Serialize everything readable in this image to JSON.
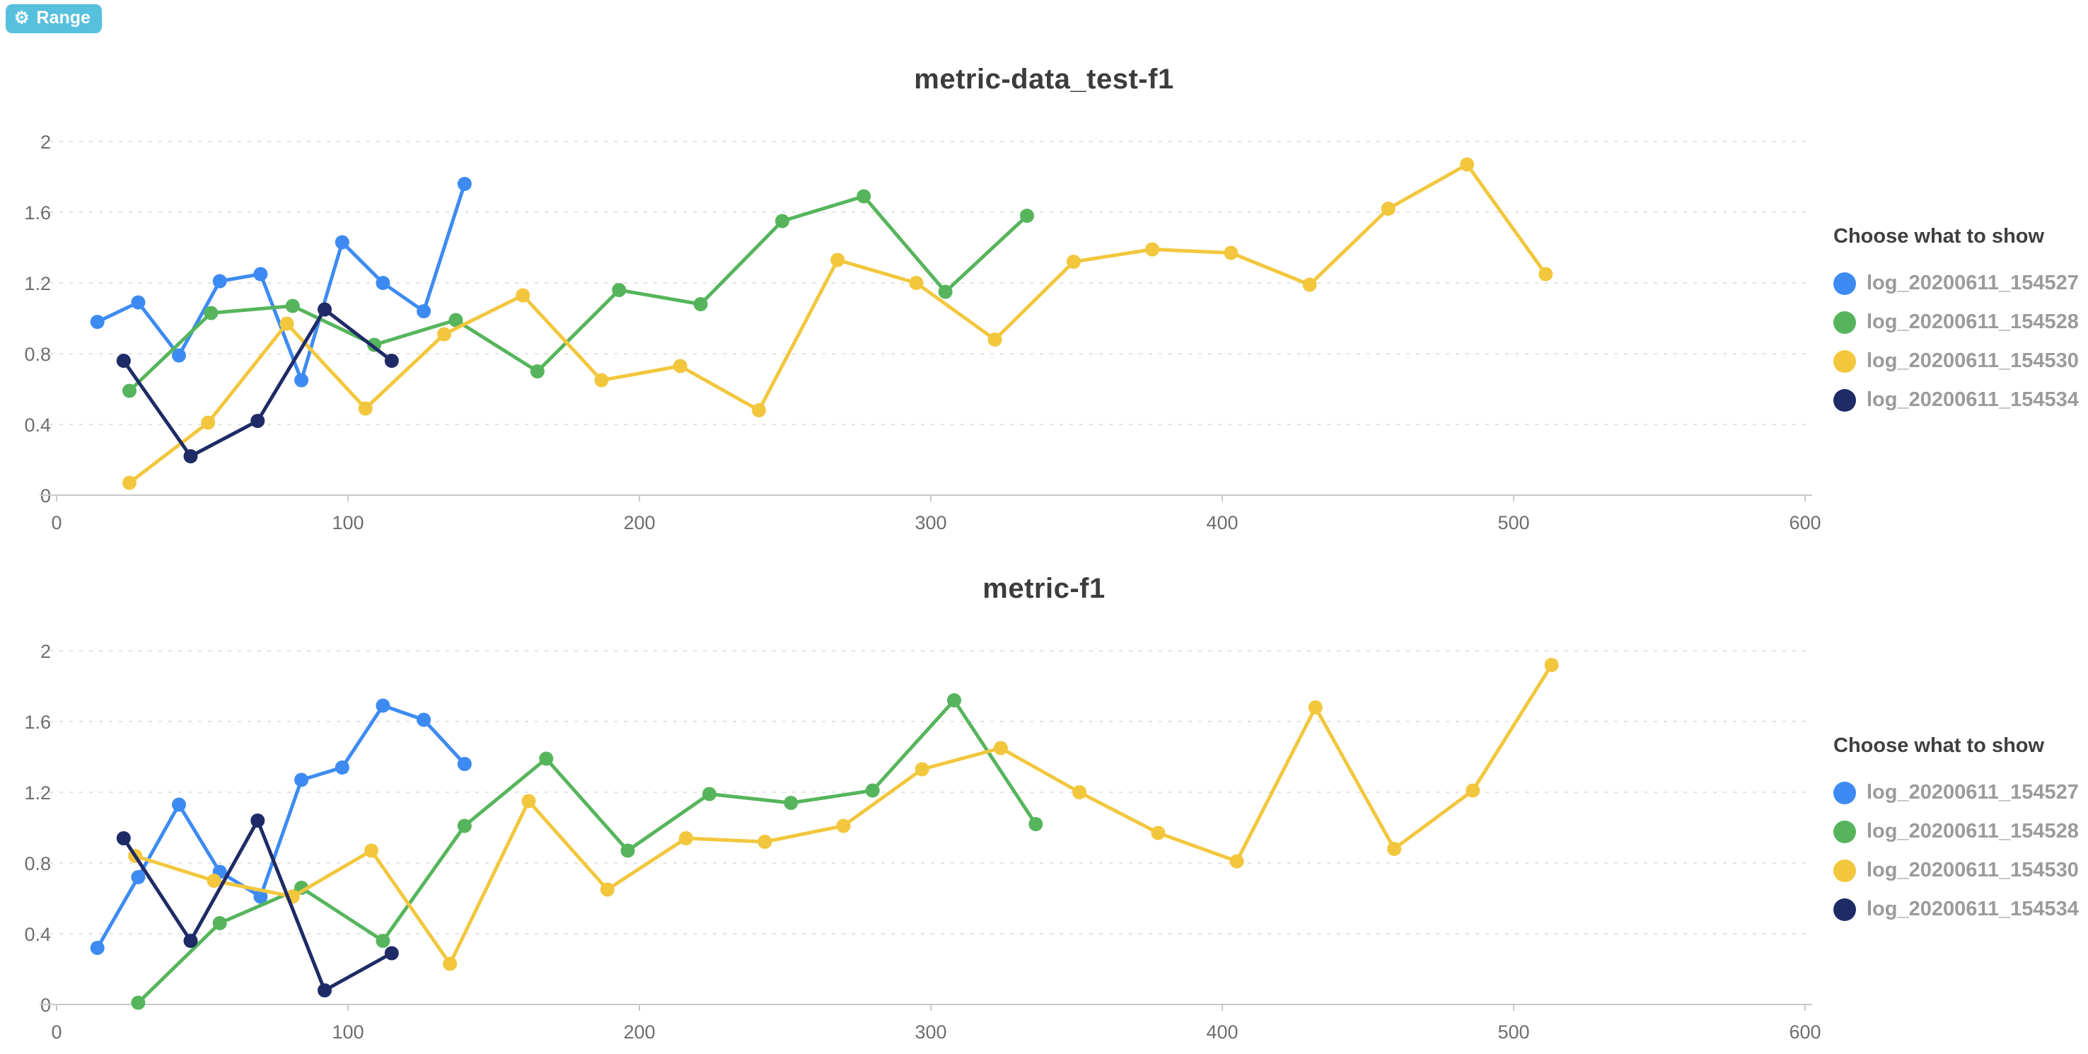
{
  "range_button": {
    "label": "Range",
    "icon_glyph": "⚙",
    "bg_color": "#57c0dd"
  },
  "chart_data": [
    {
      "type": "line",
      "title": "metric-data_test-f1",
      "xlabel": "",
      "ylabel": "",
      "xlim": [
        0,
        600
      ],
      "ylim": [
        0,
        2
      ],
      "x_ticks": [
        0,
        100,
        200,
        300,
        400,
        500,
        600
      ],
      "y_ticks": [
        0,
        0.4,
        0.8,
        1.2,
        1.6,
        2
      ],
      "grid": "horizontal-dashed",
      "legend_title": "Choose what to show",
      "legend_position": "right",
      "series": [
        {
          "name": "log_20200611_154527",
          "color": "#3d8bf2",
          "x": [
            14,
            28,
            42,
            56,
            70,
            84,
            98,
            112,
            126,
            140
          ],
          "y": [
            0.98,
            1.09,
            0.79,
            1.21,
            1.25,
            0.65,
            1.43,
            1.2,
            1.04,
            1.76
          ]
        },
        {
          "name": "log_20200611_154528",
          "color": "#56b55c",
          "x": [
            25,
            53,
            81,
            109,
            137,
            165,
            193,
            221,
            249,
            277,
            305,
            333
          ],
          "y": [
            0.59,
            1.03,
            1.07,
            0.85,
            0.99,
            0.7,
            1.16,
            1.08,
            1.55,
            1.69,
            1.15,
            1.58
          ]
        },
        {
          "name": "log_20200611_154530",
          "color": "#f2c73d",
          "x": [
            25,
            52,
            79,
            106,
            133,
            160,
            187,
            214,
            241,
            268,
            295,
            322,
            349,
            376,
            403,
            430,
            457,
            484,
            511
          ],
          "y": [
            0.07,
            0.41,
            0.97,
            0.49,
            0.91,
            1.13,
            0.65,
            0.73,
            0.48,
            1.33,
            1.2,
            0.88,
            1.32,
            1.39,
            1.37,
            1.19,
            1.62,
            1.87,
            1.25
          ]
        },
        {
          "name": "log_20200611_154534",
          "color": "#1f2b66",
          "x": [
            23,
            46,
            69,
            92,
            115
          ],
          "y": [
            0.76,
            0.22,
            0.42,
            1.05,
            0.76
          ]
        }
      ]
    },
    {
      "type": "line",
      "title": "metric-f1",
      "xlabel": "",
      "ylabel": "",
      "xlim": [
        0,
        600
      ],
      "ylim": [
        0,
        2
      ],
      "x_ticks": [
        0,
        100,
        200,
        300,
        400,
        500,
        600
      ],
      "y_ticks": [
        0,
        0.4,
        0.8,
        1.2,
        1.6,
        2
      ],
      "grid": "horizontal-dashed",
      "legend_title": "Choose what to show",
      "legend_position": "right",
      "series": [
        {
          "name": "log_20200611_154527",
          "color": "#3d8bf2",
          "x": [
            14,
            28,
            42,
            56,
            70,
            84,
            98,
            112,
            126,
            140
          ],
          "y": [
            0.32,
            0.72,
            1.13,
            0.75,
            0.61,
            1.27,
            1.34,
            1.69,
            1.61,
            1.36
          ]
        },
        {
          "name": "log_20200611_154528",
          "color": "#56b55c",
          "x": [
            28,
            56,
            84,
            112,
            140,
            168,
            196,
            224,
            252,
            280,
            308,
            336
          ],
          "y": [
            0.01,
            0.46,
            0.66,
            0.36,
            1.01,
            1.39,
            0.87,
            1.19,
            1.14,
            1.21,
            1.72,
            1.02
          ]
        },
        {
          "name": "log_20200611_154530",
          "color": "#f2c73d",
          "x": [
            27,
            54,
            81,
            108,
            135,
            162,
            189,
            216,
            243,
            270,
            297,
            324,
            351,
            378,
            405,
            432,
            459,
            486,
            513
          ],
          "y": [
            0.84,
            0.7,
            0.61,
            0.87,
            0.23,
            1.15,
            0.65,
            0.94,
            0.92,
            1.01,
            1.33,
            1.45,
            1.2,
            0.97,
            0.81,
            1.68,
            0.88,
            1.21,
            1.92
          ]
        },
        {
          "name": "log_20200611_154534",
          "color": "#1f2b66",
          "x": [
            23,
            46,
            69,
            92,
            115
          ],
          "y": [
            0.94,
            0.36,
            1.04,
            0.08,
            0.29
          ]
        }
      ]
    }
  ]
}
